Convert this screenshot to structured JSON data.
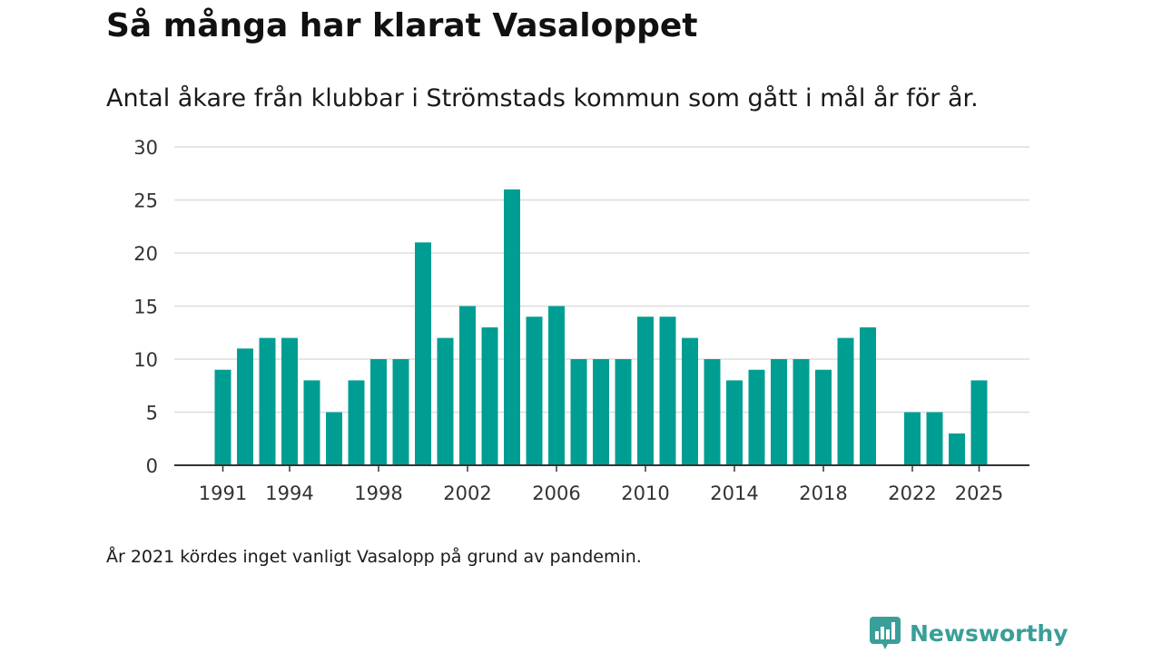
{
  "title": "Så många har klarat Vasaloppet",
  "subtitle": "Antal åkare från klubbar i Strömstads kommun som gått i mål år för år.",
  "footnote": "År 2021 kördes inget vanligt Vasalopp på grund av pandemin.",
  "brand": {
    "name": "Newsworthy",
    "color": "#3a9e99",
    "icon": "bar-chart-speech-bubble-icon"
  },
  "colors": {
    "bar": "#009e92",
    "grid": "#dddddd",
    "axis": "#333333"
  },
  "chart_data": {
    "type": "bar",
    "title": "Så många har klarat Vasaloppet",
    "xlabel": "",
    "ylabel": "",
    "ylim": [
      0,
      30
    ],
    "yticks": [
      0,
      5,
      10,
      15,
      20,
      25,
      30
    ],
    "xticks": [
      1991,
      1994,
      1998,
      2002,
      2006,
      2010,
      2014,
      2018,
      2022,
      2025
    ],
    "grid": true,
    "categories": [
      1991,
      1992,
      1993,
      1994,
      1995,
      1996,
      1997,
      1998,
      1999,
      2000,
      2001,
      2002,
      2003,
      2004,
      2005,
      2006,
      2007,
      2008,
      2009,
      2010,
      2011,
      2012,
      2013,
      2014,
      2015,
      2016,
      2017,
      2018,
      2019,
      2020,
      2021,
      2022,
      2023,
      2024,
      2025
    ],
    "values": [
      9,
      11,
      12,
      12,
      8,
      5,
      8,
      10,
      10,
      21,
      12,
      15,
      13,
      26,
      14,
      15,
      10,
      10,
      10,
      14,
      14,
      12,
      10,
      8,
      9,
      10,
      10,
      9,
      12,
      13,
      null,
      5,
      5,
      3,
      8
    ]
  }
}
